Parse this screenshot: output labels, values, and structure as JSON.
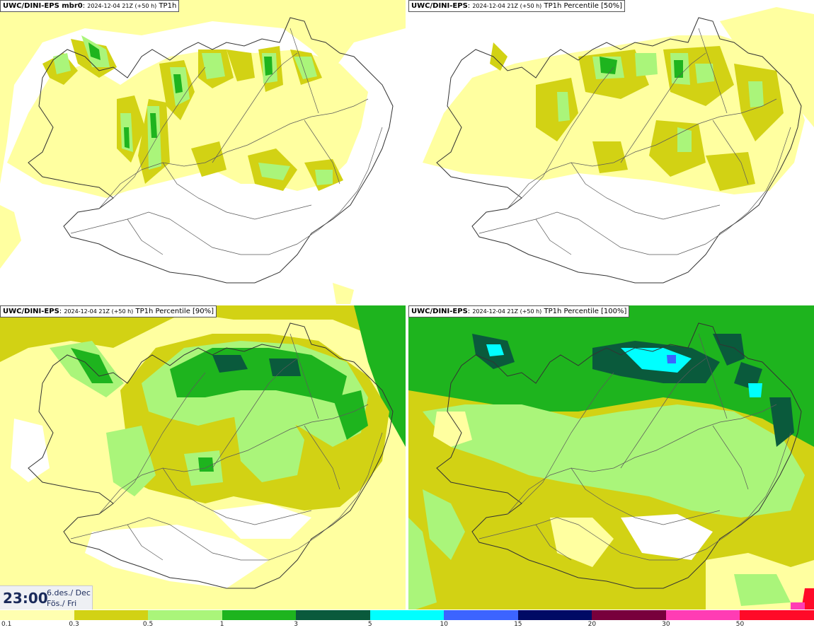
{
  "panels": [
    {
      "model": "UWC/DINI-EPS mbr0",
      "run": "2024-12-04 21Z (+50 h)",
      "product": "TP1h"
    },
    {
      "model": "UWC/DINI-EPS",
      "run": "2024-12-04 21Z (+50 h)",
      "product": "TP1h Percentile [50%]"
    },
    {
      "model": "UWC/DINI-EPS",
      "run": "2024-12-04 21Z (+50 h)",
      "product": "TP1h Percentile [90%]"
    },
    {
      "model": "UWC/DINI-EPS",
      "run": "2024-12-04 21Z (+50 h)",
      "product": "TP1h Percentile [100%]"
    }
  ],
  "valid_time": {
    "clock": "23:00",
    "date_line1": "6.des./ Dec",
    "date_line2": "Fös./ Fri"
  },
  "legend": {
    "colors": [
      "#ffffb0",
      "#d2d214",
      "#aaf57a",
      "#1eb41e",
      "#0a5a3c",
      "#00ffff",
      "#3c64ff",
      "#000a64",
      "#78003c",
      "#ff3cb4",
      "#ff0a28"
    ],
    "labels": [
      "0.1",
      "0.3",
      "0.5",
      "1",
      "3",
      "5",
      "10",
      "15",
      "20",
      "30",
      "50"
    ]
  },
  "map_colors": {
    "land_outline": "#333333",
    "road": "#5a5a5a",
    "c01": "#ffffa0",
    "c03": "#d2d214",
    "c05": "#aaf57a",
    "c1": "#1eb41e",
    "c3": "#0a5a3c",
    "c5": "#00ffff",
    "c10": "#3c64ff"
  }
}
